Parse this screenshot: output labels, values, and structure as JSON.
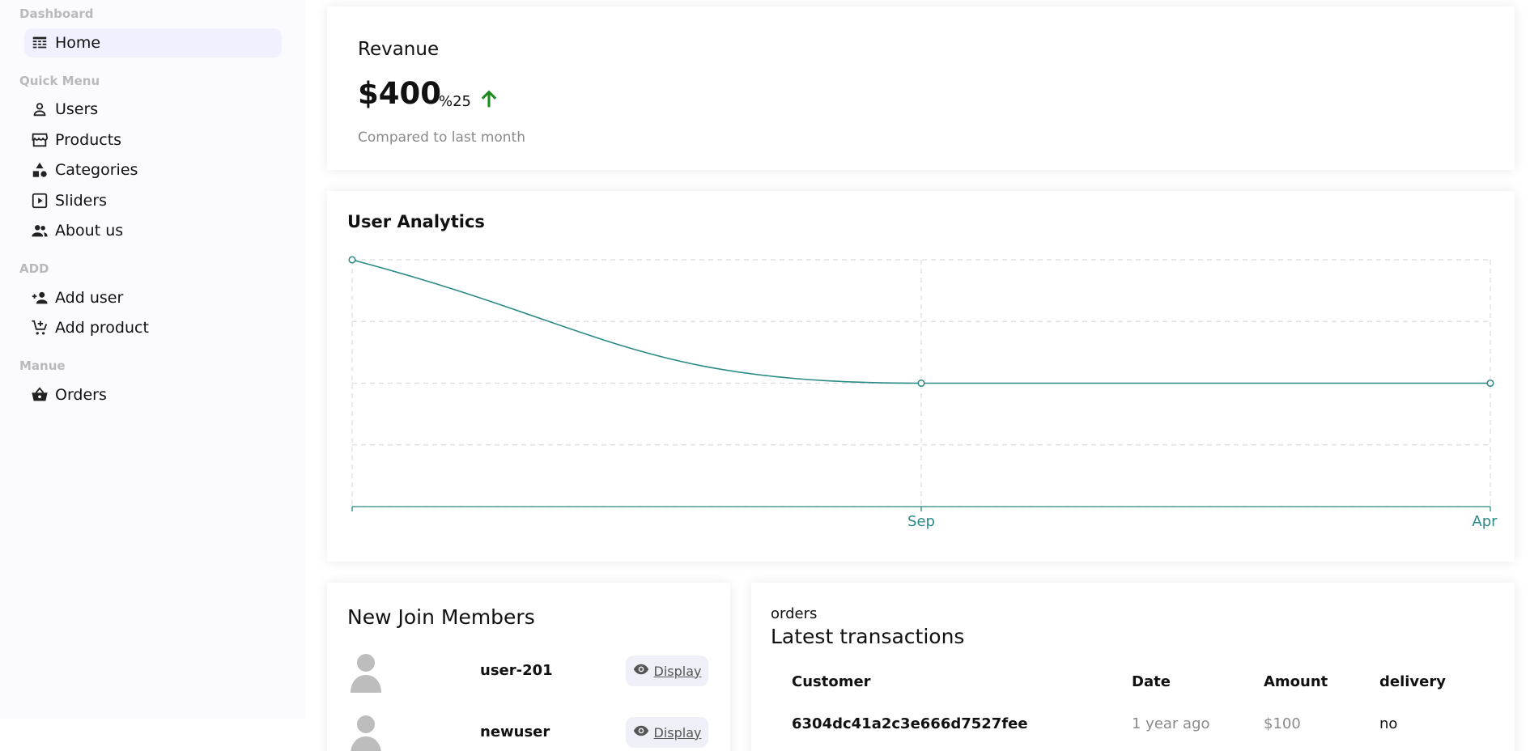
{
  "sidebar": {
    "sections": [
      {
        "heading": "Dashboard",
        "items": [
          {
            "label": "Home",
            "icon": "dashboard-icon",
            "active": true
          }
        ]
      },
      {
        "heading": "Quick Menu",
        "items": [
          {
            "label": "Users",
            "icon": "person-outline-icon"
          },
          {
            "label": "Products",
            "icon": "storefront-icon"
          },
          {
            "label": "Categories",
            "icon": "shapes-icon"
          },
          {
            "label": "Sliders",
            "icon": "slideshow-icon"
          },
          {
            "label": "About us",
            "icon": "group-icon"
          }
        ]
      },
      {
        "heading": "ADD",
        "items": [
          {
            "label": "Add user",
            "icon": "person-add-icon"
          },
          {
            "label": "Add product",
            "icon": "add-shopping-cart-icon"
          }
        ]
      },
      {
        "heading": "Manue",
        "items": [
          {
            "label": "Orders",
            "icon": "shopping-basket-icon"
          }
        ]
      }
    ]
  },
  "revenue": {
    "title": "Revanue",
    "amount": "$400",
    "rate": "%25",
    "trend_icon": "arrow-up-icon",
    "trend_color": "#1b8a1b",
    "subtitle": "Compared to last month"
  },
  "analytics": {
    "title": "User Analytics",
    "chart_data": {
      "type": "line",
      "x": [
        "",
        "Sep",
        "Apr"
      ],
      "series": [
        {
          "values": [
            2,
            1,
            1
          ]
        }
      ],
      "ylim": [
        0,
        2
      ],
      "grid": true,
      "line_color": "#2a8a86",
      "curve": "smooth"
    }
  },
  "members": {
    "title": "New Join Members",
    "button_label": "Display",
    "button_icon": "eye-icon",
    "list": [
      {
        "username": "user-201"
      },
      {
        "username": "newuser"
      }
    ]
  },
  "transactions": {
    "kicker": "orders",
    "title": "Latest transactions",
    "columns": [
      "Customer",
      "Date",
      "Amount",
      "delivery"
    ],
    "rows": [
      {
        "customer": "6304dc41a2c3e666d7527fee",
        "date": "1 year ago",
        "amount": "$100",
        "delivery": "no"
      }
    ]
  }
}
